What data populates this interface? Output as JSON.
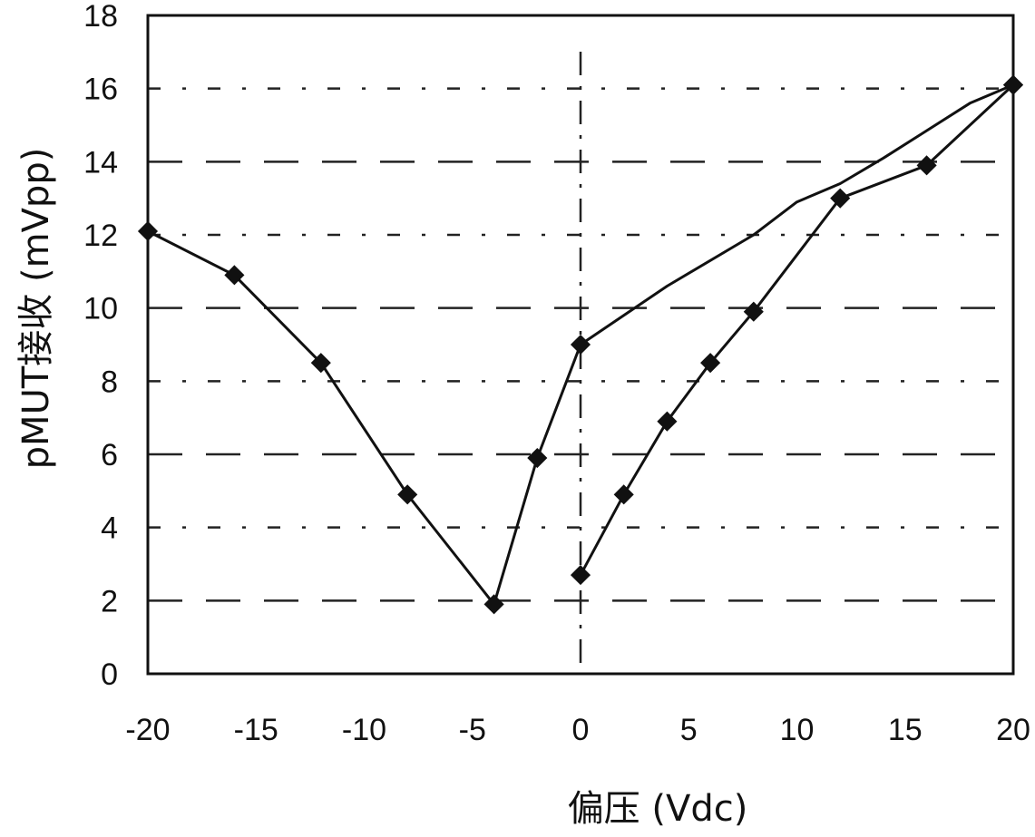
{
  "chart_data": {
    "type": "line",
    "title": "",
    "xlabel": "偏压 (Vdc)",
    "ylabel": "pMUT接收 (mVpp)",
    "xlim": [
      -20,
      20
    ],
    "ylim": [
      0,
      18
    ],
    "x_ticks": [
      -20,
      -15,
      -10,
      -5,
      0,
      5,
      10,
      15,
      20
    ],
    "y_ticks": [
      0,
      2,
      4,
      6,
      8,
      10,
      12,
      14,
      16,
      18
    ],
    "grid": "horizontal dashed lines at each y tick; vertical dash-dot line at x=0",
    "legend": "none",
    "series": [
      {
        "points": [
          {
            "x": -20,
            "y": 12.1
          },
          {
            "x": -16,
            "y": 10.9
          },
          {
            "x": -12,
            "y": 8.5
          },
          {
            "x": -8,
            "y": 4.9
          },
          {
            "x": -4,
            "y": 1.9
          },
          {
            "x": -2,
            "y": 5.9
          },
          {
            "x": 0,
            "y": 9.0
          },
          {
            "x": 4,
            "y": 10.6
          },
          {
            "x": 8,
            "y": 12.0
          },
          {
            "x": 10,
            "y": 12.9
          },
          {
            "x": 12,
            "y": 13.4
          },
          {
            "x": 14,
            "y": 14.1
          },
          {
            "x": 18,
            "y": 15.6
          },
          {
            "x": 20,
            "y": 16.1
          }
        ],
        "marked_points": [
          {
            "x": -20,
            "y": 12.1
          },
          {
            "x": -16,
            "y": 10.9
          },
          {
            "x": -12,
            "y": 8.5
          },
          {
            "x": -8,
            "y": 4.9
          },
          {
            "x": -4,
            "y": 1.9
          },
          {
            "x": -2,
            "y": 5.9
          },
          {
            "x": 0,
            "y": 9.0
          },
          {
            "x": 20,
            "y": 16.1
          }
        ]
      },
      {
        "points": [
          {
            "x": 0,
            "y": 2.7
          },
          {
            "x": 2,
            "y": 4.9
          },
          {
            "x": 4,
            "y": 6.9
          },
          {
            "x": 6,
            "y": 8.5
          },
          {
            "x": 8,
            "y": 9.9
          },
          {
            "x": 12,
            "y": 13.0
          },
          {
            "x": 16,
            "y": 13.9
          },
          {
            "x": 20,
            "y": 16.1
          }
        ],
        "marked_points": [
          {
            "x": 0,
            "y": 2.7
          },
          {
            "x": 2,
            "y": 4.9
          },
          {
            "x": 4,
            "y": 6.9
          },
          {
            "x": 6,
            "y": 8.5
          },
          {
            "x": 8,
            "y": 9.9
          },
          {
            "x": 12,
            "y": 13.0
          },
          {
            "x": 16,
            "y": 13.9
          },
          {
            "x": 20,
            "y": 16.1
          }
        ]
      }
    ],
    "colors": {
      "line": "#111111",
      "grid": "#222222",
      "background": "#ffffff"
    }
  }
}
